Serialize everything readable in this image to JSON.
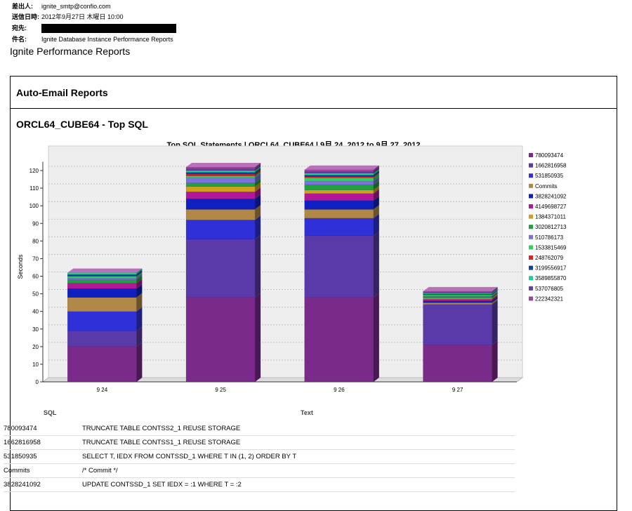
{
  "email": {
    "from_label": "差出人:",
    "from_value": "ignite_smtp@confio.com",
    "sent_label": "送信日時:",
    "sent_value": "2012年9月27日 木曜日 10:00",
    "to_label": "宛先:",
    "subject_label": "件名:",
    "subject_value": "Ignite Database Instance Performance Reports"
  },
  "page_title": "Ignite Performance Reports",
  "report_header": "Auto-Email Reports",
  "section_title": "ORCL64_CUBE64 - Top SQL",
  "colors": {
    "780093474": "#7a2a8a",
    "1662816958": "#5a3aa8",
    "531850935": "#3030d8",
    "Commits": "#b08848",
    "3828241092": "#1020c0",
    "4149698727": "#b01898",
    "1384371011": "#d0a020",
    "3020812713": "#20a040",
    "510786173": "#7b72e0",
    "1533815469": "#30d060",
    "248762079": "#e02020",
    "3199556917": "#1040a0",
    "3589855870": "#20d090",
    "537076805": "#6040a0",
    "222342321": "#a040a0"
  },
  "chart_data": {
    "type": "bar",
    "stacked": true,
    "title": "Top SQL Statements  |  ORCL64_CUBE64  |  9月 24, 2012 to 9月 27, 2012",
    "xlabel": "",
    "ylabel": "Seconds",
    "ylim": [
      0,
      125
    ],
    "yticks": [
      0,
      10,
      20,
      30,
      40,
      50,
      60,
      70,
      80,
      90,
      100,
      110,
      120
    ],
    "grid": true,
    "legend_position": "right",
    "categories": [
      "9 24",
      "9 25",
      "9 26",
      "9 27"
    ],
    "series": [
      {
        "name": "780093474",
        "values": [
          20,
          48,
          48,
          21
        ]
      },
      {
        "name": "1662816958",
        "values": [
          9,
          33,
          35,
          23
        ]
      },
      {
        "name": "531850935",
        "values": [
          11,
          11,
          10,
          0
        ]
      },
      {
        "name": "Commits",
        "values": [
          8,
          6,
          5,
          1
        ]
      },
      {
        "name": "3828241092",
        "values": [
          5,
          6,
          5,
          1
        ]
      },
      {
        "name": "4149698727",
        "values": [
          3,
          4,
          4,
          1
        ]
      },
      {
        "name": "1384371011",
        "values": [
          0,
          3,
          2,
          0.5
        ]
      },
      {
        "name": "3020812713",
        "values": [
          2,
          2,
          3,
          1
        ]
      },
      {
        "name": "510786173",
        "values": [
          1,
          3,
          2,
          0.5
        ]
      },
      {
        "name": "1533815469",
        "values": [
          1,
          1,
          2,
          0.5
        ]
      },
      {
        "name": "248762079",
        "values": [
          0,
          1,
          0.5,
          0
        ]
      },
      {
        "name": "3199556917",
        "values": [
          1,
          1,
          1,
          0.5
        ]
      },
      {
        "name": "3589855870",
        "values": [
          1,
          1,
          1,
          0.5
        ]
      },
      {
        "name": "537076805",
        "values": [
          0,
          1,
          1,
          0.5
        ]
      },
      {
        "name": "222342321",
        "values": [
          0,
          1,
          1,
          0.5
        ]
      }
    ]
  },
  "table": {
    "headers": [
      "SQL",
      "Text"
    ],
    "rows": [
      [
        "780093474",
        "TRUNCATE TABLE CONTSS2_1 REUSE STORAGE"
      ],
      [
        "1662816958",
        "TRUNCATE TABLE CONTSS1_1 REUSE STORAGE"
      ],
      [
        "531850935",
        "SELECT T, IEDX FROM CONTSSD_1 WHERE T IN (1, 2) ORDER BY T"
      ],
      [
        "Commits",
        "/* Commit */"
      ],
      [
        "3828241092",
        "UPDATE CONTSSD_1 SET IEDX = :1 WHERE T = :2"
      ]
    ]
  }
}
